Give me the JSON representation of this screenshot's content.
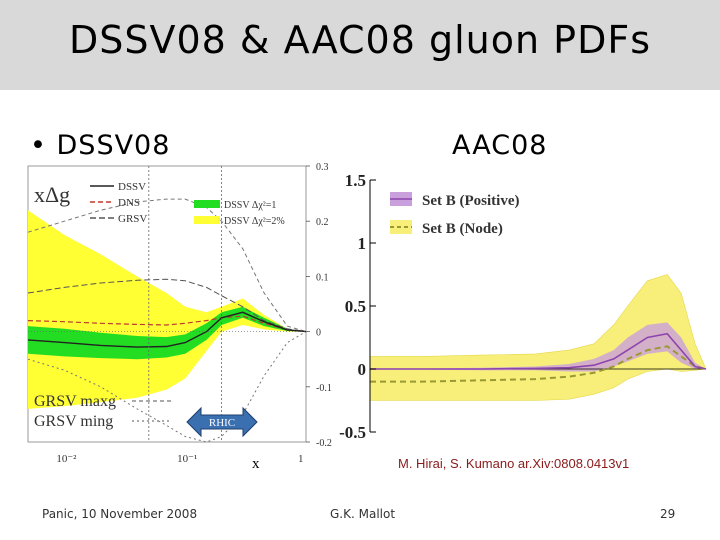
{
  "slide": {
    "title": "DSSV08 & AAC08 gluon PDFs",
    "bullet_label": "• DSSV08",
    "aac_label": "AAC08",
    "citation": "M. Hirai, S. Kumano ar.Xiv:0808.0413v1",
    "footer_left": "Panic, 10 November 2008",
    "footer_center": "G.K. Mallot",
    "page_number": "29",
    "rhic_label": "RHIC",
    "x_axis_label": "x"
  },
  "chart_data": [
    {
      "type": "line",
      "title": "xΔg",
      "xscale": "log",
      "xlim": [
        0.005,
        1
      ],
      "ylim": [
        -0.2,
        0.3
      ],
      "xtick_labels": [
        "10⁻²",
        "10⁻¹",
        "1"
      ],
      "ytick_values": [
        0.3,
        0.2,
        0.1,
        0,
        -0.1,
        -0.2
      ],
      "ytick_labels": [
        "0.3",
        "0.2",
        "0.1",
        "0",
        "-0.1",
        "-0.2"
      ],
      "legend": [
        "DSSV",
        "DNS",
        "GRSV",
        "DSSV Δχ²=1",
        "DSSV Δχ²=2%"
      ],
      "bottom_legend": [
        "GRSV  maxg",
        "GRSV  ming"
      ],
      "colors": {
        "dssv": "#222222",
        "dns": "#c0392b",
        "grsv": "#555555",
        "band1": "#22dd22",
        "band2": "#ffff33"
      },
      "x": [
        0.005,
        0.01,
        0.02,
        0.04,
        0.07,
        0.1,
        0.15,
        0.2,
        0.3,
        0.45,
        0.7,
        1.0
      ],
      "series": [
        {
          "name": "DSSV",
          "values": [
            -0.015,
            -0.02,
            -0.025,
            -0.028,
            -0.027,
            -0.02,
            0.0,
            0.025,
            0.035,
            0.018,
            0.003,
            0.0
          ]
        },
        {
          "name": "DSSV Δχ²=1 upper",
          "values": [
            0.01,
            0.005,
            -0.002,
            -0.008,
            -0.01,
            -0.005,
            0.015,
            0.035,
            0.045,
            0.025,
            0.005,
            0.0
          ]
        },
        {
          "name": "DSSV Δχ²=1 lower",
          "values": [
            -0.04,
            -0.045,
            -0.048,
            -0.05,
            -0.047,
            -0.04,
            -0.015,
            0.012,
            0.025,
            0.01,
            0.001,
            0.0
          ]
        },
        {
          "name": "DSSV Δχ²=2% upper",
          "values": [
            0.22,
            0.175,
            0.14,
            0.1,
            0.07,
            0.045,
            0.035,
            0.045,
            0.06,
            0.03,
            0.005,
            0.0
          ]
        },
        {
          "name": "DSSV Δχ²=2% lower",
          "values": [
            -0.14,
            -0.135,
            -0.128,
            -0.12,
            -0.105,
            -0.085,
            -0.035,
            0.0,
            0.012,
            0.004,
            0.0,
            0.0
          ]
        },
        {
          "name": "DNS",
          "values": [
            0.02,
            0.018,
            0.015,
            0.013,
            0.012,
            0.015,
            0.02,
            0.025,
            0.028,
            0.015,
            0.003,
            0.0
          ]
        },
        {
          "name": "GRSV",
          "values": [
            0.07,
            0.08,
            0.088,
            0.093,
            0.095,
            0.092,
            0.08,
            0.065,
            0.045,
            0.02,
            0.005,
            0.0
          ]
        },
        {
          "name": "GRSV maxg",
          "values": [
            0.18,
            0.2,
            0.22,
            0.235,
            0.24,
            0.24,
            0.225,
            0.2,
            0.15,
            0.07,
            0.01,
            0.0
          ]
        },
        {
          "name": "GRSV ming",
          "values": [
            -0.05,
            -0.07,
            -0.1,
            -0.14,
            -0.17,
            -0.19,
            -0.2,
            -0.19,
            -0.15,
            -0.08,
            -0.02,
            0.0
          ]
        }
      ]
    },
    {
      "type": "line",
      "xscale": "log",
      "xlim": [
        0.001,
        1
      ],
      "ylim": [
        -0.5,
        1.5
      ],
      "ytick_values": [
        1.5,
        1,
        0.5,
        0,
        -0.5
      ],
      "ytick_labels": [
        "1.5",
        "1",
        "0.5",
        "0",
        "-0.5"
      ],
      "legend": [
        "Set B (Positive)",
        "Set B (Node)"
      ],
      "colors": {
        "positive": "#8e44ad",
        "positive_band": "#c9a0dc",
        "node": "#999933",
        "node_band": "#f7ef7a"
      },
      "x": [
        0.001,
        0.003,
        0.01,
        0.03,
        0.06,
        0.1,
        0.15,
        0.2,
        0.3,
        0.45,
        0.6,
        0.8,
        1.0
      ],
      "series": [
        {
          "name": "Set B (Positive)",
          "values": [
            0.0,
            0.0,
            0.0,
            0.005,
            0.01,
            0.03,
            0.08,
            0.15,
            0.25,
            0.28,
            0.15,
            0.02,
            0.0
          ]
        },
        {
          "name": "Set B (Positive) upper",
          "values": [
            0.005,
            0.005,
            0.01,
            0.02,
            0.04,
            0.08,
            0.15,
            0.25,
            0.35,
            0.37,
            0.25,
            0.05,
            0.0
          ]
        },
        {
          "name": "Set B (Positive) lower",
          "values": [
            -0.005,
            -0.005,
            -0.01,
            -0.01,
            -0.02,
            -0.02,
            0.02,
            0.06,
            0.12,
            0.14,
            0.05,
            0.0,
            0.0
          ]
        },
        {
          "name": "Set B (Node)",
          "values": [
            -0.1,
            -0.1,
            -0.09,
            -0.08,
            -0.06,
            -0.03,
            0.02,
            0.08,
            0.15,
            0.18,
            0.1,
            0.02,
            0.0
          ]
        },
        {
          "name": "Set B (Node) upper",
          "values": [
            0.1,
            0.1,
            0.11,
            0.12,
            0.15,
            0.2,
            0.35,
            0.5,
            0.7,
            0.75,
            0.6,
            0.2,
            0.0
          ]
        },
        {
          "name": "Set B (Node) lower",
          "values": [
            -0.25,
            -0.25,
            -0.25,
            -0.25,
            -0.24,
            -0.2,
            -0.15,
            -0.08,
            -0.02,
            0.0,
            -0.02,
            -0.01,
            0.0
          ]
        }
      ]
    }
  ]
}
